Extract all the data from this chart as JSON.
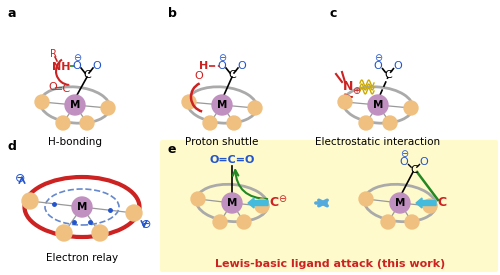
{
  "title": "",
  "background": "#ffffff",
  "tan_color": "#f0c080",
  "metal_color": "#c090c0",
  "blue_color": "#2255cc",
  "red_color": "#cc2222",
  "green_color": "#228822",
  "gray_color": "#aaaaaa",
  "yellow_bg": "#fffacc",
  "labels": [
    "a",
    "b",
    "c",
    "d",
    "e"
  ],
  "captions": [
    "H-bonding",
    "Proton shuttle",
    "Electrostatic interaction",
    "Electron relay",
    "Lewis-basic ligand attack (this work)"
  ]
}
